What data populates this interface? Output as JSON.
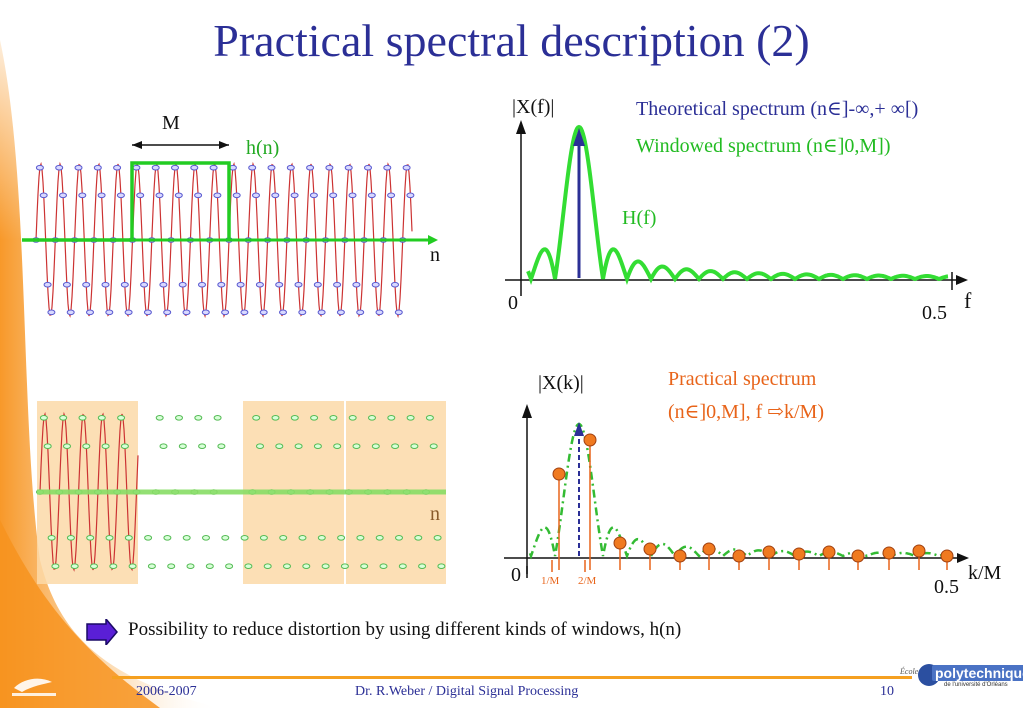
{
  "title": "Practical spectral description (2)",
  "top_left": {
    "window_width_label": "M",
    "window_label": "h(n)",
    "axis_label": "n"
  },
  "top_right": {
    "ylabel": "|X(f)|",
    "legend_theoretical": "Theoretical spectrum (n∈]-∞,+ ∞[)",
    "legend_windowed": "Windowed spectrum (n∈]0,M])",
    "window_spectrum_label": "H(f)",
    "origin_label": "0",
    "x_end_label": "0.5",
    "xlabel": "f"
  },
  "bottom_left": {
    "axis_label": "n"
  },
  "bottom_right": {
    "ylabel": "|X(k)|",
    "caption_line1": "Practical spectrum",
    "caption_line2": "(n∈]0,M], f ⇨k/M)",
    "origin_label": "0",
    "tick_1": "1/M",
    "tick_2": "2/M",
    "x_end_label": "0.5",
    "xlabel": "k/M"
  },
  "bullet_text": "Possibility to reduce distortion by using different kinds of windows, h(n)",
  "footer": {
    "year": "2006-2007",
    "author": "Dr. R.Weber / Digital Signal Processing",
    "page": "10",
    "logo_small": "École",
    "logo_main": "polytechnique",
    "logo_sub": "de l'université d'Orléans"
  },
  "colors": {
    "title": "#2b2f96",
    "accent_orange": "#f5a020",
    "window_green": "#22cc22",
    "signal_red": "#cc3333",
    "marker_blue": "#6a6ad8",
    "theoretical_blue": "#2b2f96",
    "practical_orange": "#e8641a"
  }
}
